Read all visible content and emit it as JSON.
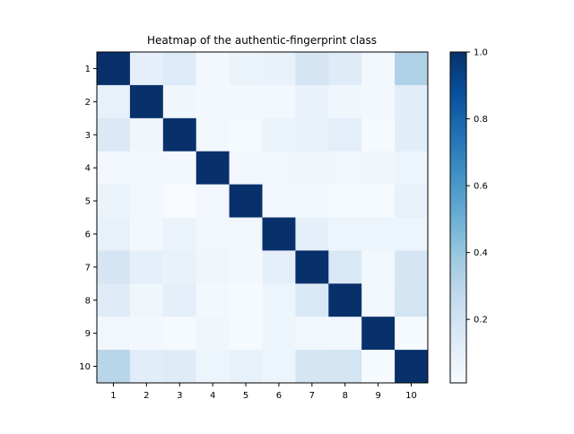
{
  "chart_data": {
    "type": "heatmap",
    "title": "Heatmap of the authentic-fingerprint class",
    "xlabel": "",
    "ylabel": "",
    "x_categories": [
      "1",
      "2",
      "3",
      "4",
      "5",
      "6",
      "7",
      "8",
      "9",
      "10"
    ],
    "y_categories": [
      "1",
      "2",
      "3",
      "4",
      "5",
      "6",
      "7",
      "8",
      "9",
      "10"
    ],
    "values": [
      [
        1.0,
        0.1,
        0.14,
        0.03,
        0.07,
        0.08,
        0.18,
        0.13,
        0.04,
        0.33
      ],
      [
        0.09,
        1.0,
        0.05,
        0.03,
        0.03,
        0.03,
        0.08,
        0.05,
        0.03,
        0.12
      ],
      [
        0.15,
        0.05,
        1.0,
        0.03,
        0.02,
        0.07,
        0.09,
        0.11,
        0.02,
        0.12
      ],
      [
        0.03,
        0.03,
        0.03,
        1.0,
        0.04,
        0.04,
        0.05,
        0.04,
        0.05,
        0.06
      ],
      [
        0.07,
        0.03,
        0.01,
        0.04,
        1.0,
        0.04,
        0.03,
        0.02,
        0.02,
        0.09
      ],
      [
        0.09,
        0.03,
        0.07,
        0.04,
        0.04,
        1.0,
        0.1,
        0.06,
        0.06,
        0.06
      ],
      [
        0.18,
        0.1,
        0.08,
        0.05,
        0.03,
        0.1,
        1.0,
        0.16,
        0.04,
        0.18
      ],
      [
        0.13,
        0.05,
        0.1,
        0.03,
        0.02,
        0.06,
        0.16,
        1.0,
        0.04,
        0.19
      ],
      [
        0.04,
        0.03,
        0.02,
        0.05,
        0.02,
        0.06,
        0.04,
        0.04,
        1.0,
        0.02
      ],
      [
        0.3,
        0.12,
        0.13,
        0.06,
        0.09,
        0.06,
        0.18,
        0.19,
        0.02,
        1.0
      ]
    ],
    "colormap": "Blues",
    "colorbar": {
      "min": 0.01,
      "max": 1.0,
      "ticks": [
        "0.2",
        "0.4",
        "0.6",
        "0.8",
        "1.0"
      ],
      "tick_values": [
        0.2,
        0.4,
        0.6,
        0.8,
        1.0
      ]
    },
    "colors": {
      "low": "#f7fbff",
      "high": "#08306b"
    },
    "grid": false,
    "legend": "colorbar-right"
  }
}
